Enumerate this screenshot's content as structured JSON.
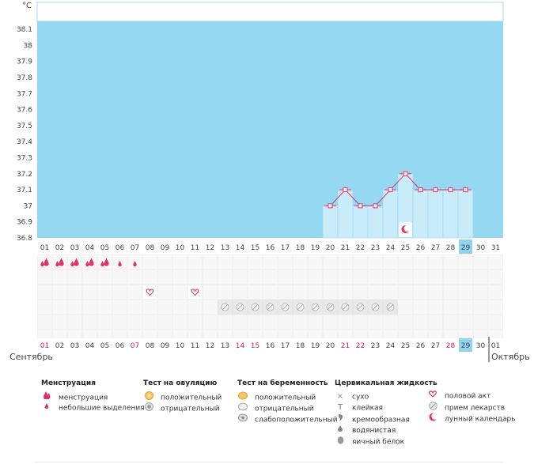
{
  "chart_data": {
    "type": "bar",
    "unit_label": "°C",
    "ylim": [
      36.8,
      38.15
    ],
    "y_ticks": [
      "36.8",
      "36.9",
      "37",
      "37.1",
      "37.2",
      "37.3",
      "37.4",
      "37.5",
      "37.6",
      "37.7",
      "37.8",
      "37.9",
      "38",
      "38.1"
    ],
    "days": [
      "01",
      "02",
      "03",
      "04",
      "05",
      "06",
      "07",
      "08",
      "09",
      "10",
      "11",
      "12",
      "13",
      "14",
      "15",
      "16",
      "17",
      "18",
      "19",
      "20",
      "21",
      "22",
      "23",
      "24",
      "25",
      "26",
      "27",
      "28",
      "29",
      "30",
      "31"
    ],
    "today": "29",
    "temperatures": [
      {
        "day": "20",
        "value": 37.0
      },
      {
        "day": "21",
        "value": 37.1
      },
      {
        "day": "22",
        "value": 37.0
      },
      {
        "day": "23",
        "value": 37.0
      },
      {
        "day": "24",
        "value": 37.1
      },
      {
        "day": "25",
        "value": 37.2
      },
      {
        "day": "26",
        "value": 37.1
      },
      {
        "day": "27",
        "value": 37.1
      },
      {
        "day": "28",
        "value": 37.1
      },
      {
        "day": "29",
        "value": 37.1
      }
    ],
    "moon_marker_day": "25",
    "menstruation_heavy_days": [
      "01",
      "02",
      "03",
      "04",
      "05"
    ],
    "menstruation_light_days": [
      "06",
      "07"
    ],
    "intercourse_days": [
      "08",
      "11"
    ],
    "medication_days": [
      "13",
      "14",
      "15",
      "16",
      "17",
      "18",
      "19",
      "20",
      "21",
      "22",
      "23",
      "24"
    ],
    "bottom_days": [
      "01",
      "02",
      "03",
      "04",
      "05",
      "06",
      "07",
      "08",
      "09",
      "10",
      "11",
      "12",
      "13",
      "14",
      "15",
      "16",
      "17",
      "18",
      "19",
      "20",
      "21",
      "22",
      "23",
      "24",
      "25",
      "26",
      "27",
      "28",
      "29",
      "30",
      "01"
    ],
    "bottom_red_days_index": [
      0,
      6,
      13,
      14,
      20,
      21,
      27
    ],
    "month_left": "Сентябрь",
    "month_right": "Октябрь"
  },
  "legend": {
    "menstruation": {
      "title": "Менструация",
      "items": [
        "менструация",
        "небольшие выделения"
      ]
    },
    "ovulation": {
      "title": "Тест на овуляцию",
      "items": [
        "положительный",
        "отрицательный"
      ]
    },
    "pregnancy": {
      "title": "Тест на беременность",
      "items": [
        "положительный",
        "отрицательный",
        "слабоположительный"
      ]
    },
    "cervical": {
      "title": "Цервикальная жидкость",
      "items": [
        "сухо",
        "клейкая",
        "кремообразная",
        "водянистая",
        "яичный белок"
      ]
    },
    "other": {
      "items": [
        "половой акт",
        "прием лекарств",
        "лунный календарь"
      ]
    }
  },
  "colors": {
    "bg_plot": "#95d8f2",
    "bar": "#c9ecfb",
    "line": "#e2316c",
    "today": "#8fd3ee",
    "red": "#d81b5e"
  },
  "icons": {
    "heavy": "drop-icon",
    "light": "small-drop-icon",
    "sex": "heart-icon",
    "pill": "pill-icon",
    "moon": "moon-icon"
  }
}
